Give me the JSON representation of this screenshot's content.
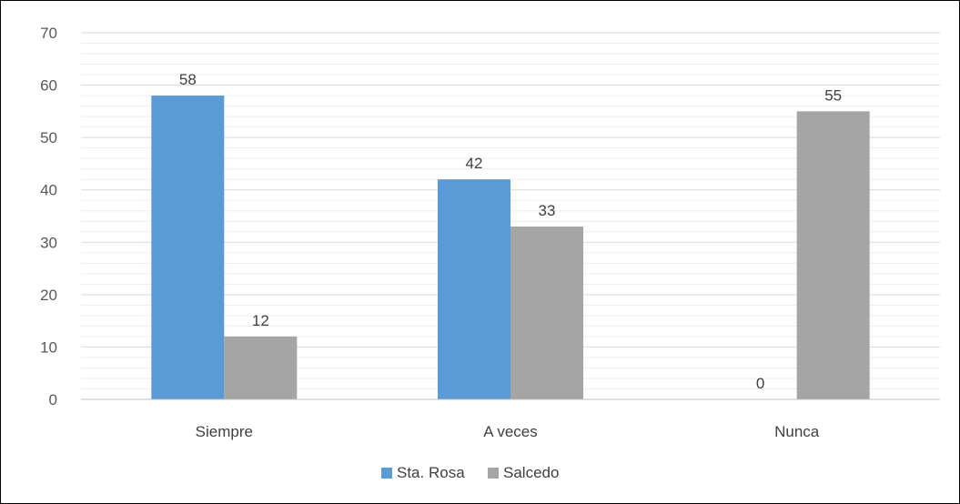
{
  "chart_data": {
    "type": "bar",
    "categories": [
      "Siempre",
      "A veces",
      "Nunca"
    ],
    "series": [
      {
        "name": "Sta. Rosa",
        "values": [
          58,
          42,
          0
        ],
        "color": "#5B9BD5"
      },
      {
        "name": "Salcedo",
        "values": [
          12,
          33,
          55
        ],
        "color": "#A5A5A5"
      }
    ],
    "yticks": [
      "0",
      "10",
      "20",
      "30",
      "40",
      "50",
      "60",
      "70"
    ],
    "ylim": [
      0,
      70
    ],
    "grid": true,
    "minor_grid": true,
    "data_labels": true,
    "legend_position": "bottom",
    "colors": {
      "gridline": "#D9D9D9",
      "axis": "#BFBFBF"
    }
  }
}
